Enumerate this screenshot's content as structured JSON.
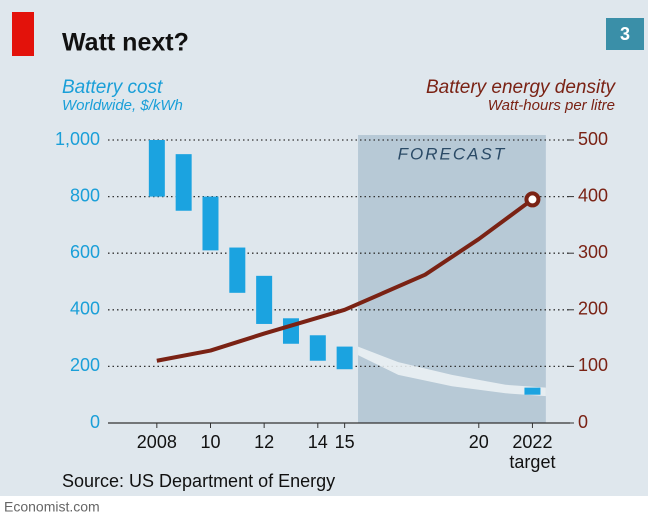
{
  "chart_data": {
    "type": "combo",
    "title": "Watt next?",
    "badge": "3",
    "y_label": "Battery cost",
    "y_sublabel": "Worldwide, $/kWh",
    "y2_label": "Battery energy density",
    "y2_sublabel": "Watt-hours per litre",
    "source": "Source: US Department of Energy",
    "footer": "Economist.com",
    "forecast": {
      "label": "FORECAST",
      "start": 2015.5,
      "end": 2022.5,
      "color": "#b7c9d6"
    },
    "xlim": [
      2007,
      2023.4
    ],
    "xticks": [
      {
        "value": 2008,
        "label": "2008"
      },
      {
        "value": 2010,
        "label": "10"
      },
      {
        "value": 2012,
        "label": "12"
      },
      {
        "value": 2014,
        "label": "14"
      },
      {
        "value": 2015,
        "label": "15"
      },
      {
        "value": 2020,
        "label": "20"
      },
      {
        "value": 2022,
        "label": "2022"
      }
    ],
    "x_note": "target",
    "ylim": [
      0,
      1000
    ],
    "yticks": [
      0,
      200,
      400,
      600,
      800,
      {
        "value": 1000,
        "label": "1,000"
      }
    ],
    "y2lim": [
      0,
      500
    ],
    "y2ticks": [
      0,
      100,
      200,
      300,
      400,
      500
    ],
    "grid": true,
    "series": [
      {
        "name": "Battery cost",
        "type": "range",
        "color": "#1ba3e0",
        "x": [
          2008,
          2009,
          2010,
          2011,
          2012,
          2013,
          2014,
          2015,
          2022
        ],
        "low": [
          800,
          750,
          610,
          460,
          350,
          280,
          220,
          190,
          100
        ],
        "high": [
          1000,
          950,
          800,
          620,
          520,
          370,
          310,
          270,
          125
        ]
      },
      {
        "name": "Battery energy density",
        "type": "line",
        "axis": "y2",
        "color": "#7a2214",
        "x": [
          2008,
          2010,
          2012,
          2015,
          2018,
          2020,
          2022
        ],
        "values": [
          110,
          128,
          158,
          200,
          262,
          325,
          395
        ]
      }
    ],
    "forecast_band": {
      "color": "#eef3f6",
      "x": [
        2015.5,
        2017,
        2019,
        2021,
        2022.5
      ],
      "lower": [
        240,
        170,
        130,
        105,
        95
      ],
      "upper": [
        270,
        215,
        170,
        135,
        125
      ]
    }
  }
}
